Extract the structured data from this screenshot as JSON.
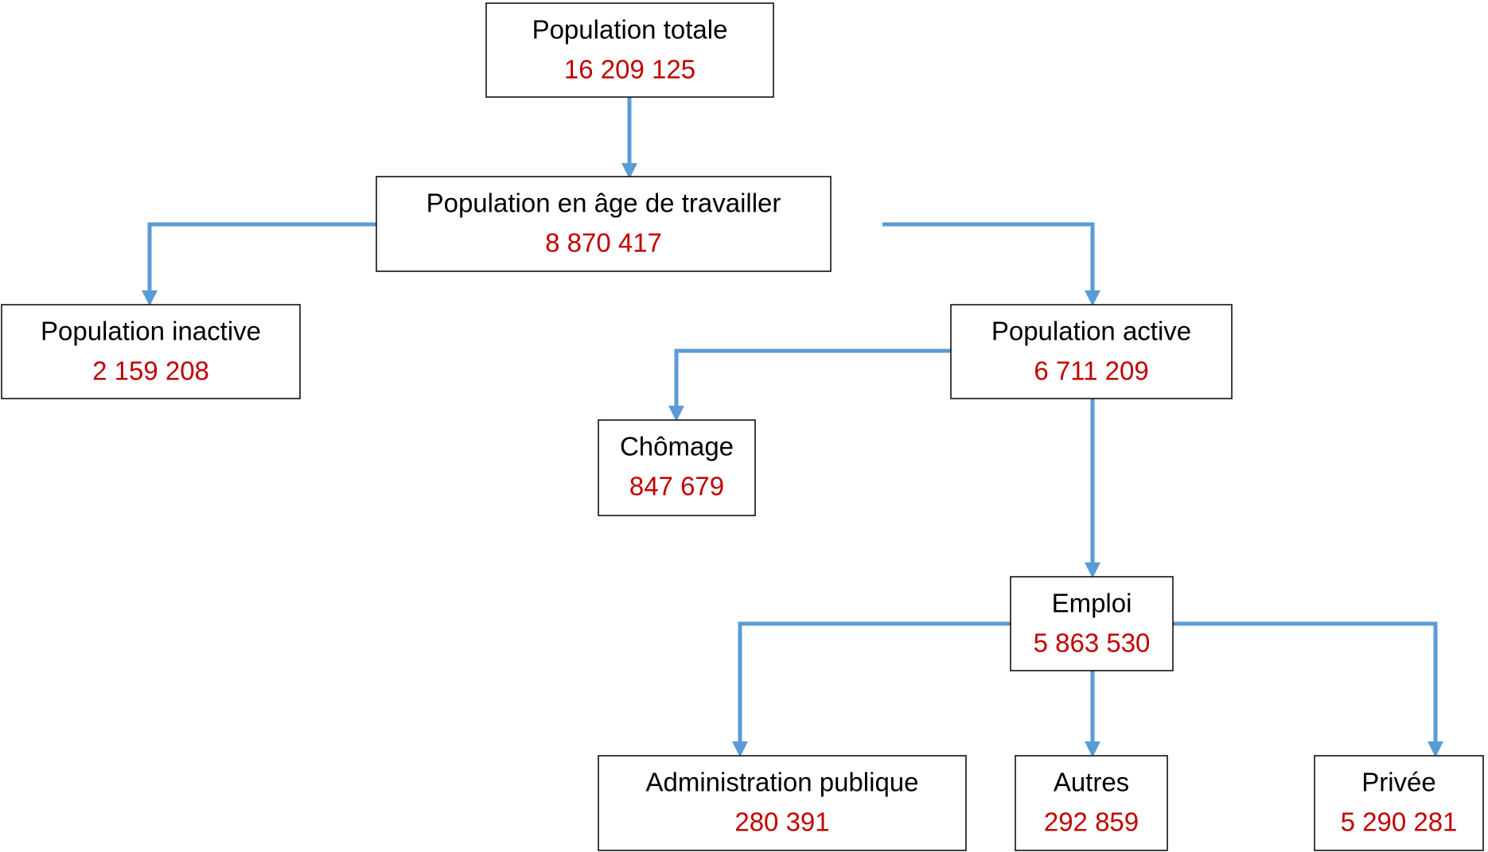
{
  "nodes": [
    {
      "label": "Population totale",
      "value": "16 209 125"
    },
    {
      "label": "Population en âge de travailler",
      "value": "8 870 417"
    },
    {
      "label": "Population inactive",
      "value": "2 159 208"
    },
    {
      "label": "Population active",
      "value": "6 711 209"
    },
    {
      "label": "Chômage",
      "value": "847 679"
    },
    {
      "label": "Emploi",
      "value": "5 863 530"
    },
    {
      "label": "Administration publique",
      "value": "280 391"
    },
    {
      "label": "Autres",
      "value": "292 859"
    },
    {
      "label": "Privée",
      "value": "5 290 281"
    }
  ]
}
